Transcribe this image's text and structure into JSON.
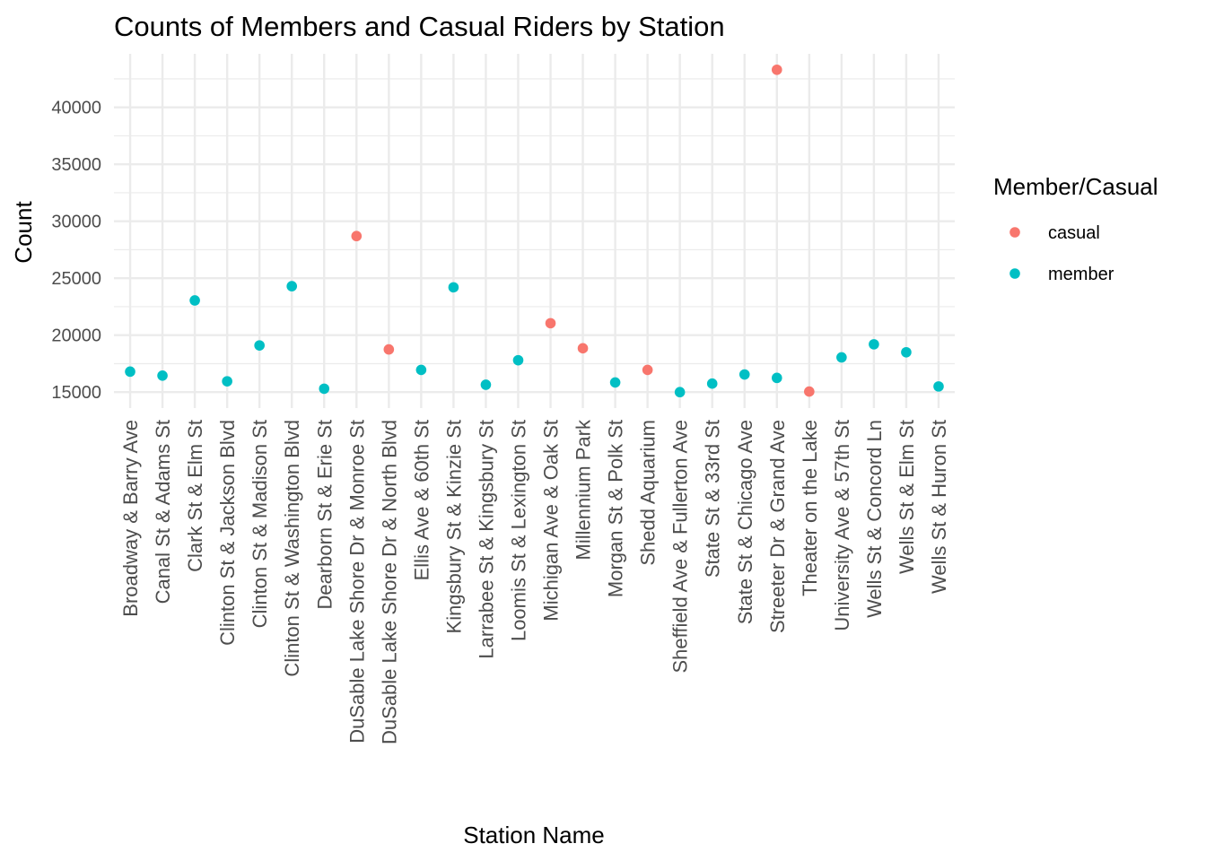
{
  "chart_data": {
    "type": "scatter",
    "title": "Counts of Members and Casual Riders by Station",
    "xlabel": "Station Name",
    "ylabel": "Count",
    "y_ticks": [
      15000,
      20000,
      25000,
      30000,
      35000,
      40000
    ],
    "ylim": [
      13600,
      44700
    ],
    "grid": true,
    "legend": {
      "title": "Member/Casual",
      "placement": "right",
      "entries": [
        {
          "label": "casual",
          "color": "#F8766D"
        },
        {
          "label": "member",
          "color": "#00BFC4"
        }
      ]
    },
    "categories": [
      "Broadway & Barry Ave",
      "Canal St & Adams St",
      "Clark St & Elm St",
      "Clinton St & Jackson Blvd",
      "Clinton St & Madison St",
      "Clinton St & Washington Blvd",
      "Dearborn St & Erie St",
      "DuSable Lake Shore Dr & Monroe St",
      "DuSable Lake Shore Dr & North Blvd",
      "Ellis Ave & 60th St",
      "Kingsbury St & Kinzie St",
      "Larrabee St & Kingsbury St",
      "Loomis St & Lexington St",
      "Michigan Ave & Oak St",
      "Millennium Park",
      "Morgan St & Polk St",
      "Shedd Aquarium",
      "Sheffield Ave & Fullerton Ave",
      "State St & 33rd St",
      "State St & Chicago Ave",
      "Streeter Dr & Grand Ave",
      "Theater on the Lake",
      "University Ave & 57th St",
      "Wells St & Concord Ln",
      "Wells St & Elm St",
      "Wells St & Huron St"
    ],
    "series": [
      {
        "name": "casual",
        "color": "#F8766D",
        "points": [
          {
            "x": "DuSable Lake Shore Dr & Monroe St",
            "y": 28700
          },
          {
            "x": "DuSable Lake Shore Dr & North Blvd",
            "y": 18750
          },
          {
            "x": "Michigan Ave & Oak St",
            "y": 21050
          },
          {
            "x": "Millennium Park",
            "y": 18850
          },
          {
            "x": "Shedd Aquarium",
            "y": 16950
          },
          {
            "x": "Streeter Dr & Grand Ave",
            "y": 43300
          },
          {
            "x": "Theater on the Lake",
            "y": 15050
          }
        ]
      },
      {
        "name": "member",
        "color": "#00BFC4",
        "points": [
          {
            "x": "Broadway & Barry Ave",
            "y": 16800
          },
          {
            "x": "Canal St & Adams St",
            "y": 16450
          },
          {
            "x": "Clark St & Elm St",
            "y": 23050
          },
          {
            "x": "Clinton St & Jackson Blvd",
            "y": 15950
          },
          {
            "x": "Clinton St & Madison St",
            "y": 19100
          },
          {
            "x": "Clinton St & Washington Blvd",
            "y": 24300
          },
          {
            "x": "Dearborn St & Erie St",
            "y": 15300
          },
          {
            "x": "Ellis Ave & 60th St",
            "y": 16950
          },
          {
            "x": "Kingsbury St & Kinzie St",
            "y": 24200
          },
          {
            "x": "Larrabee St & Kingsbury St",
            "y": 15650
          },
          {
            "x": "Loomis St & Lexington St",
            "y": 17800
          },
          {
            "x": "Morgan St & Polk St",
            "y": 15850
          },
          {
            "x": "Sheffield Ave & Fullerton Ave",
            "y": 15000
          },
          {
            "x": "State St & 33rd St",
            "y": 15750
          },
          {
            "x": "State St & Chicago Ave",
            "y": 16550
          },
          {
            "x": "Streeter Dr & Grand Ave",
            "y": 16250
          },
          {
            "x": "University Ave & 57th St",
            "y": 18050
          },
          {
            "x": "Wells St & Concord Ln",
            "y": 19200
          },
          {
            "x": "Wells St & Elm St",
            "y": 18500
          },
          {
            "x": "Wells St & Huron St",
            "y": 15500
          }
        ]
      }
    ]
  }
}
